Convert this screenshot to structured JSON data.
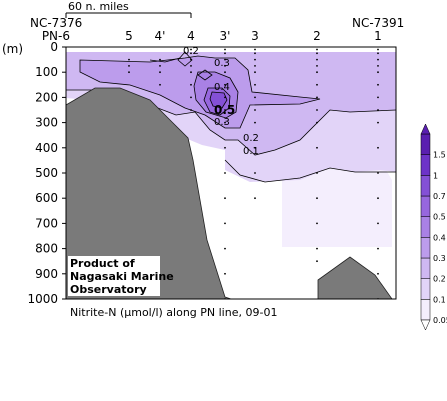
{
  "chart_data": {
    "type": "contour",
    "title": "Nitrite-N (μmol/l) along PN line, 09-01",
    "ylabel": "(m)",
    "scale_label": "60 n. miles",
    "left_label": "NC-7376",
    "right_label": "NC-7391",
    "credit": [
      "Product of",
      "Nagasaki Marine",
      "Observatory"
    ],
    "ylim": [
      0,
      1000
    ],
    "y_ticks": [
      0,
      100,
      200,
      300,
      400,
      500,
      600,
      700,
      800,
      900,
      1000
    ],
    "stations": [
      "PN-6",
      "5",
      "4'",
      "4",
      "3'",
      "3",
      "2",
      "1"
    ],
    "contour_labels": [
      "0.2",
      "0.3",
      "0.4",
      "0.5",
      "0.3",
      "0.2",
      "0.1"
    ],
    "colorbar": {
      "levels": [
        "0.05",
        "0.1",
        "0.2",
        "0.3",
        "0.4",
        "0.5",
        "0.7",
        "1",
        "1.5"
      ],
      "colors": [
        "#f4eefd",
        "#e2d4f8",
        "#cfb8f2",
        "#bc9cec",
        "#a981e5",
        "#9767de",
        "#8450d6",
        "#6d33c8",
        "#5a1fb0"
      ]
    }
  }
}
